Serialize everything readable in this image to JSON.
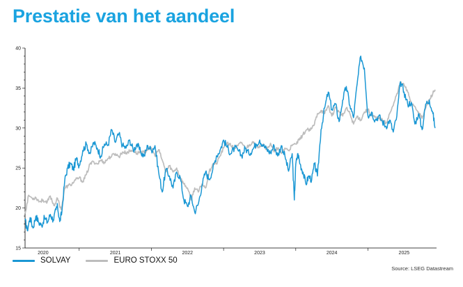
{
  "page": {
    "title": "Prestatie van het aandeel",
    "source": "Source: LSEG Datastream"
  },
  "colors": {
    "title": "#1aa3e0",
    "solvay": "#1a97d4",
    "eurostoxx": "#bdbdbd",
    "axis": "#000000"
  },
  "chart_data": {
    "type": "line",
    "title": "",
    "xlabel": "",
    "ylabel": "",
    "x_range": [
      2019.75,
      2025.45
    ],
    "ylim": [
      15,
      40
    ],
    "y_ticks": [
      15,
      20,
      25,
      30,
      35,
      40
    ],
    "x_tick_positions": [
      2020,
      2021,
      2022,
      2023,
      2024,
      2025
    ],
    "x_tick_labels": [
      "2020",
      "2021",
      "2022",
      "2023",
      "2024",
      "2025"
    ],
    "grid": false,
    "legend_position": "bottom-left",
    "series": [
      {
        "name": "SOLVAY",
        "color": "#1a97d4",
        "x": [
          2019.75,
          2019.78,
          2019.82,
          2019.86,
          2019.9,
          2019.94,
          2019.98,
          2020.02,
          2020.06,
          2020.1,
          2020.14,
          2020.18,
          2020.2,
          2020.23,
          2020.26,
          2020.3,
          2020.34,
          2020.38,
          2020.42,
          2020.46,
          2020.5,
          2020.55,
          2020.6,
          2020.65,
          2020.7,
          2020.75,
          2020.8,
          2020.85,
          2020.9,
          2020.95,
          2021.0,
          2021.05,
          2021.1,
          2021.15,
          2021.2,
          2021.25,
          2021.3,
          2021.35,
          2021.4,
          2021.45,
          2021.5,
          2021.55,
          2021.6,
          2021.65,
          2021.7,
          2021.75,
          2021.8,
          2021.85,
          2021.9,
          2021.95,
          2022.0,
          2022.05,
          2022.1,
          2022.15,
          2022.2,
          2022.25,
          2022.3,
          2022.35,
          2022.4,
          2022.45,
          2022.5,
          2022.55,
          2022.6,
          2022.65,
          2022.7,
          2022.75,
          2022.8,
          2022.85,
          2022.9,
          2022.95,
          2023.0,
          2023.05,
          2023.1,
          2023.15,
          2023.2,
          2023.25,
          2023.3,
          2023.35,
          2023.4,
          2023.45,
          2023.48,
          2023.5,
          2023.53,
          2023.56,
          2023.6,
          2023.64,
          2023.68,
          2023.72,
          2023.76,
          2023.8,
          2023.85,
          2023.9,
          2023.95,
          2024.0,
          2024.05,
          2024.1,
          2024.15,
          2024.2,
          2024.25,
          2024.3,
          2024.35,
          2024.4,
          2024.45,
          2024.5,
          2024.55,
          2024.6,
          2024.65,
          2024.7,
          2024.75,
          2024.8,
          2024.85,
          2024.9,
          2024.95,
          2025.0,
          2025.05,
          2025.1,
          2025.15,
          2025.2,
          2025.25,
          2025.3,
          2025.35,
          2025.4,
          2025.43
        ],
        "values": [
          18.5,
          17.2,
          18.8,
          17.5,
          19.0,
          18.2,
          17.8,
          18.8,
          18.2,
          19.2,
          18.5,
          19.8,
          20.2,
          18.3,
          19.5,
          23.5,
          25.0,
          25.6,
          24.8,
          26.2,
          25.3,
          27.2,
          28.0,
          26.8,
          28.2,
          27.5,
          26.5,
          28.0,
          27.9,
          29.8,
          28.2,
          29.3,
          27.8,
          27.5,
          28.5,
          27.2,
          28.0,
          27.0,
          26.5,
          27.8,
          27.2,
          27.8,
          24.5,
          22.0,
          24.8,
          24.0,
          22.5,
          24.5,
          23.8,
          21.0,
          20.2,
          21.5,
          19.5,
          20.5,
          22.8,
          24.5,
          23.6,
          24.8,
          26.5,
          27.2,
          28.5,
          27.6,
          26.8,
          27.5,
          27.2,
          26.5,
          27.5,
          26.8,
          27.3,
          28.0,
          28.5,
          27.8,
          27.3,
          26.9,
          27.8,
          26.5,
          27.8,
          26.5,
          24.6,
          26.8,
          21.0,
          25.5,
          26.8,
          25.5,
          24.5,
          23.0,
          24.0,
          23.5,
          25.5,
          24.0,
          29.8,
          32.5,
          34.5,
          32.3,
          33.0,
          30.8,
          33.5,
          35.2,
          32.8,
          31.3,
          35.5,
          39.0,
          37.5,
          31.5,
          32.0,
          31.0,
          31.5,
          30.8,
          30.2,
          31.0,
          29.5,
          31.5,
          35.8,
          34.5,
          33.0,
          33.2,
          30.5,
          31.8,
          29.8,
          33.0,
          33.5,
          31.8,
          30.0
        ]
      },
      {
        "name": "EURO STOXX 50",
        "color": "#bdbdbd",
        "x": [
          2019.75,
          2019.8,
          2019.85,
          2019.9,
          2019.95,
          2020.0,
          2020.05,
          2020.1,
          2020.15,
          2020.2,
          2020.25,
          2020.3,
          2020.35,
          2020.4,
          2020.45,
          2020.5,
          2020.55,
          2020.6,
          2020.65,
          2020.7,
          2020.75,
          2020.8,
          2020.85,
          2020.9,
          2020.95,
          2021.0,
          2021.05,
          2021.1,
          2021.15,
          2021.2,
          2021.25,
          2021.3,
          2021.35,
          2021.4,
          2021.45,
          2021.5,
          2021.55,
          2021.6,
          2021.65,
          2021.7,
          2021.75,
          2021.8,
          2021.85,
          2021.9,
          2021.95,
          2022.0,
          2022.05,
          2022.1,
          2022.15,
          2022.2,
          2022.25,
          2022.3,
          2022.35,
          2022.4,
          2022.45,
          2022.5,
          2022.55,
          2022.6,
          2022.65,
          2022.7,
          2022.75,
          2022.8,
          2022.85,
          2022.9,
          2022.95,
          2023.0,
          2023.05,
          2023.1,
          2023.15,
          2023.2,
          2023.25,
          2023.3,
          2023.35,
          2023.4,
          2023.45,
          2023.5,
          2023.55,
          2023.6,
          2023.65,
          2023.7,
          2023.75,
          2023.8,
          2023.85,
          2023.9,
          2023.95,
          2024.0,
          2024.05,
          2024.1,
          2024.15,
          2024.2,
          2024.25,
          2024.3,
          2024.35,
          2024.4,
          2024.45,
          2024.5,
          2024.55,
          2024.6,
          2024.65,
          2024.7,
          2024.75,
          2024.8,
          2024.85,
          2024.9,
          2024.95,
          2025.0,
          2025.05,
          2025.1,
          2025.15,
          2025.2,
          2025.25,
          2025.3,
          2025.35,
          2025.4,
          2025.43
        ],
        "values": [
          19.3,
          21.6,
          21.2,
          21.3,
          20.8,
          21.0,
          20.6,
          21.5,
          20.3,
          21.2,
          19.8,
          22.5,
          22.8,
          23.0,
          23.5,
          23.8,
          23.3,
          24.2,
          25.5,
          25.8,
          25.5,
          26.0,
          25.7,
          26.2,
          26.5,
          26.8,
          26.4,
          27.0,
          26.9,
          27.1,
          27.2,
          26.8,
          27.1,
          26.9,
          27.4,
          27.5,
          26.5,
          27.3,
          26.0,
          24.5,
          25.3,
          24.5,
          25.0,
          23.8,
          23.0,
          22.5,
          21.0,
          22.5,
          22.0,
          23.0,
          22.5,
          24.5,
          25.5,
          25.5,
          26.5,
          27.5,
          28.2,
          27.8,
          27.5,
          27.8,
          28.2,
          27.5,
          27.8,
          28.3,
          27.6,
          27.8,
          28.0,
          27.3,
          28.1,
          27.0,
          27.5,
          26.8,
          27.5,
          27.2,
          27.8,
          28.0,
          28.5,
          29.2,
          29.8,
          29.7,
          30.3,
          31.8,
          32.2,
          31.8,
          32.8,
          31.5,
          32.6,
          32.0,
          31.5,
          32.5,
          31.8,
          30.5,
          31.5,
          31.0,
          32.0,
          32.3,
          31.6,
          31.3,
          31.2,
          31.0,
          30.6,
          31.8,
          32.8,
          34.3,
          35.6,
          35.4,
          34.5,
          33.2,
          32.7,
          32.0,
          31.2,
          32.5,
          33.5,
          34.4,
          34.8
        ]
      }
    ]
  }
}
